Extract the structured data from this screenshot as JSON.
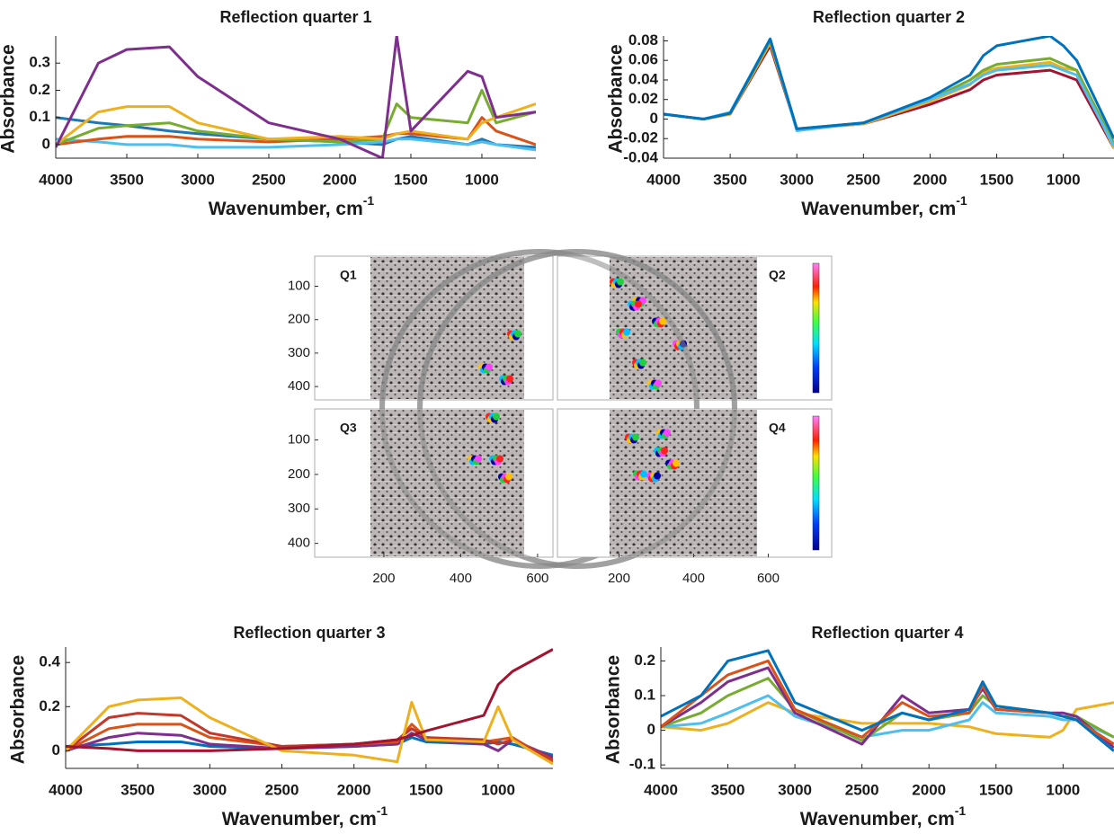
{
  "chart_data": [
    {
      "type": "line",
      "title": "Reflection quarter 1",
      "ylabel": "Absorbance",
      "xlabel": "Wavenumber, cm",
      "xlabel_superscript": "-1",
      "x": [
        4000,
        3700,
        3500,
        3200,
        3000,
        2500,
        2000,
        1700,
        1600,
        1500,
        1100,
        1000,
        900,
        620
      ],
      "xlim": [
        4000,
        620
      ],
      "xticks": [
        4000,
        3500,
        3000,
        2500,
        2000,
        1500,
        1000
      ],
      "ylim": [
        -0.05,
        0.4
      ],
      "yticks": [
        0,
        0.1,
        0.2,
        0.3
      ],
      "series": [
        {
          "color": "#1f77b4",
          "values": [
            0.1,
            0.08,
            0.07,
            0.05,
            0.04,
            0.02,
            0.01,
            0.0,
            0.02,
            0.03,
            0.0,
            0.02,
            0.0,
            -0.01
          ]
        },
        {
          "color": "#4dbeee",
          "values": [
            0.02,
            0.01,
            0.0,
            0.0,
            -0.01,
            -0.01,
            0.0,
            0.01,
            0.02,
            0.02,
            0.0,
            0.01,
            0.0,
            -0.02
          ]
        },
        {
          "color": "#d95319",
          "values": [
            0.0,
            0.02,
            0.03,
            0.03,
            0.02,
            0.01,
            0.02,
            0.03,
            0.04,
            0.04,
            0.02,
            0.1,
            0.05,
            0.0
          ]
        },
        {
          "color": "#77ac30",
          "values": [
            0.0,
            0.06,
            0.07,
            0.08,
            0.05,
            0.02,
            0.01,
            0.02,
            0.15,
            0.1,
            0.08,
            0.2,
            0.08,
            0.12
          ]
        },
        {
          "color": "#edb120",
          "values": [
            0.0,
            0.12,
            0.14,
            0.14,
            0.08,
            0.02,
            0.03,
            0.02,
            0.04,
            0.05,
            0.02,
            0.08,
            0.1,
            0.15
          ]
        },
        {
          "color": "#7e2f8e",
          "values": [
            -0.01,
            0.3,
            0.35,
            0.36,
            0.25,
            0.08,
            0.02,
            -0.05,
            0.4,
            0.05,
            0.27,
            0.25,
            0.1,
            0.12
          ]
        }
      ]
    },
    {
      "type": "line",
      "title": "Reflection quarter 2",
      "ylabel": "Absorbance",
      "xlabel": "Wavenumber, cm",
      "xlabel_superscript": "-1",
      "x": [
        4000,
        3700,
        3500,
        3200,
        3000,
        2500,
        2000,
        1700,
        1600,
        1500,
        1100,
        1000,
        900,
        620
      ],
      "xlim": [
        4000,
        620
      ],
      "xticks": [
        4000,
        3500,
        3000,
        2500,
        2000,
        1500,
        1000
      ],
      "ylim": [
        -0.04,
        0.085
      ],
      "yticks": [
        -0.04,
        -0.02,
        0,
        0.02,
        0.04,
        0.06,
        0.08
      ],
      "series": [
        {
          "color": "#a2142f",
          "values": [
            0.005,
            0.0,
            0.005,
            0.075,
            -0.01,
            -0.005,
            0.015,
            0.03,
            0.04,
            0.045,
            0.05,
            0.045,
            0.04,
            -0.03
          ]
        },
        {
          "color": "#edb120",
          "values": [
            0.005,
            0.0,
            0.005,
            0.078,
            -0.01,
            -0.005,
            0.018,
            0.035,
            0.048,
            0.052,
            0.058,
            0.052,
            0.05,
            -0.03
          ]
        },
        {
          "color": "#77ac30",
          "values": [
            0.005,
            0.0,
            0.006,
            0.08,
            -0.01,
            -0.004,
            0.02,
            0.04,
            0.05,
            0.056,
            0.062,
            0.056,
            0.05,
            -0.025
          ]
        },
        {
          "color": "#4dbeee",
          "values": [
            0.005,
            0.0,
            0.007,
            0.082,
            -0.012,
            -0.004,
            0.02,
            0.036,
            0.045,
            0.05,
            0.055,
            0.05,
            0.045,
            -0.028
          ]
        },
        {
          "color": "#0072bd",
          "values": [
            0.005,
            0.0,
            0.006,
            0.082,
            -0.01,
            -0.004,
            0.022,
            0.045,
            0.065,
            0.075,
            0.085,
            0.075,
            0.06,
            -0.02
          ]
        }
      ]
    },
    {
      "type": "image",
      "panels": [
        {
          "label": "Q1",
          "xlim": [
            20,
            640
          ],
          "ylim": [
            10,
            440
          ]
        },
        {
          "label": "Q2",
          "xlim": [
            35,
            770
          ],
          "ylim": [
            10,
            440
          ]
        },
        {
          "label": "Q3",
          "xlim": [
            20,
            640
          ],
          "ylim": [
            10,
            440
          ]
        },
        {
          "label": "Q4",
          "xlim": [
            35,
            770
          ],
          "ylim": [
            10,
            440
          ]
        }
      ],
      "xticks": [
        200,
        400,
        600
      ],
      "yticks": [
        100,
        200,
        300,
        400
      ]
    },
    {
      "type": "line",
      "title": "Reflection quarter 3",
      "ylabel": "Absorbance",
      "xlabel": "Wavenumber, cm",
      "xlabel_superscript": "-1",
      "x": [
        4000,
        3700,
        3500,
        3200,
        3000,
        2500,
        2000,
        1700,
        1600,
        1500,
        1100,
        1000,
        900,
        620
      ],
      "xlim": [
        4000,
        620
      ],
      "xticks": [
        4000,
        3500,
        3000,
        2500,
        2000,
        1500,
        1000
      ],
      "ylim": [
        -0.08,
        0.47
      ],
      "yticks": [
        0,
        0.2,
        0.4
      ],
      "series": [
        {
          "color": "#0072bd",
          "values": [
            0.02,
            0.03,
            0.04,
            0.04,
            0.02,
            0.01,
            0.02,
            0.03,
            0.06,
            0.04,
            0.03,
            0.04,
            0.03,
            -0.02
          ]
        },
        {
          "color": "#7e2f8e",
          "values": [
            0.0,
            0.06,
            0.08,
            0.07,
            0.03,
            0.01,
            0.02,
            0.03,
            0.08,
            0.05,
            0.03,
            0.0,
            0.05,
            -0.03
          ]
        },
        {
          "color": "#d95319",
          "values": [
            0.0,
            0.1,
            0.12,
            0.12,
            0.06,
            0.02,
            0.03,
            0.04,
            0.12,
            0.06,
            0.04,
            0.05,
            0.06,
            -0.05
          ]
        },
        {
          "color": "#c0392b",
          "values": [
            0.0,
            0.15,
            0.17,
            0.16,
            0.08,
            0.02,
            0.03,
            0.05,
            0.1,
            0.06,
            0.05,
            0.03,
            0.05,
            -0.04
          ]
        },
        {
          "color": "#edb120",
          "values": [
            0.0,
            0.2,
            0.23,
            0.24,
            0.15,
            0.0,
            -0.02,
            -0.05,
            0.22,
            0.05,
            0.04,
            0.2,
            0.05,
            -0.06
          ]
        },
        {
          "color": "#a2142f",
          "values": [
            0.02,
            0.01,
            0.0,
            0.0,
            0.0,
            0.01,
            0.03,
            0.05,
            0.07,
            0.09,
            0.16,
            0.3,
            0.36,
            0.46
          ]
        }
      ]
    },
    {
      "type": "line",
      "title": "Reflection quarter 4",
      "ylabel": "Absorbance",
      "xlabel": "Wavenumber, cm",
      "xlabel_superscript": "-1",
      "x": [
        4000,
        3700,
        3500,
        3200,
        3000,
        2500,
        2200,
        2000,
        1700,
        1600,
        1500,
        1100,
        1000,
        900,
        620
      ],
      "xlim": [
        4000,
        620
      ],
      "xticks": [
        4000,
        3500,
        3000,
        2500,
        2000,
        1500,
        1000
      ],
      "ylim": [
        -0.11,
        0.24
      ],
      "yticks": [
        -0.1,
        0,
        0.1,
        0.2
      ],
      "series": [
        {
          "color": "#edb120",
          "values": [
            0.01,
            0.0,
            0.02,
            0.08,
            0.05,
            0.02,
            0.02,
            0.02,
            0.01,
            0.0,
            -0.01,
            -0.02,
            0.0,
            0.06,
            0.08
          ]
        },
        {
          "color": "#4dbeee",
          "values": [
            0.01,
            0.02,
            0.05,
            0.1,
            0.04,
            -0.02,
            0.0,
            0.0,
            0.03,
            0.08,
            0.05,
            0.04,
            0.03,
            0.03,
            -0.02
          ]
        },
        {
          "color": "#77ac30",
          "values": [
            0.01,
            0.05,
            0.1,
            0.15,
            0.06,
            -0.03,
            0.05,
            0.03,
            0.05,
            0.1,
            0.07,
            0.05,
            0.04,
            0.04,
            -0.02
          ]
        },
        {
          "color": "#7e2f8e",
          "values": [
            0.01,
            0.08,
            0.14,
            0.18,
            0.05,
            -0.04,
            0.1,
            0.05,
            0.06,
            0.12,
            0.06,
            0.05,
            0.05,
            0.04,
            -0.05
          ]
        },
        {
          "color": "#d95319",
          "values": [
            0.01,
            0.1,
            0.16,
            0.2,
            0.06,
            -0.02,
            0.08,
            0.04,
            0.05,
            0.13,
            0.06,
            0.05,
            0.04,
            0.03,
            -0.04
          ]
        },
        {
          "color": "#0072bd",
          "values": [
            0.04,
            0.1,
            0.2,
            0.23,
            0.08,
            0.0,
            0.05,
            0.03,
            0.06,
            0.14,
            0.07,
            0.05,
            0.04,
            0.03,
            -0.06
          ]
        }
      ]
    }
  ]
}
